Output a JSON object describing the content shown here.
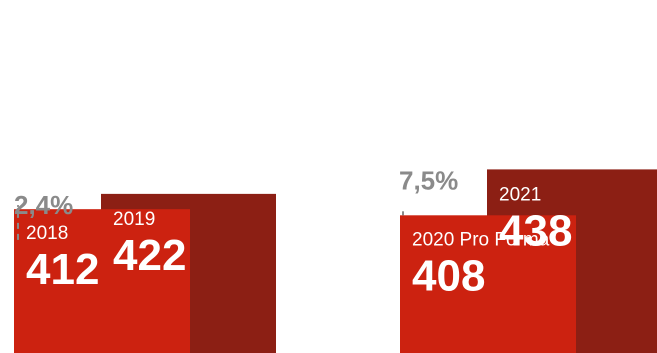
{
  "chart_data": [
    {
      "type": "bar",
      "categories": [
        "2018",
        "2019"
      ],
      "values": [
        412,
        422
      ],
      "change_label": "2,4%",
      "colors": [
        "#cc2210",
        "#8c1f14"
      ]
    },
    {
      "type": "bar",
      "categories": [
        "2020 Pro Forma",
        "2021"
      ],
      "values": [
        408,
        438
      ],
      "change_label": "7,5%",
      "colors": [
        "#cc2210",
        "#8c1f14"
      ]
    }
  ],
  "colors": {
    "change_text": "#8a8a8a",
    "dashed_line": "#8a8a8a"
  }
}
